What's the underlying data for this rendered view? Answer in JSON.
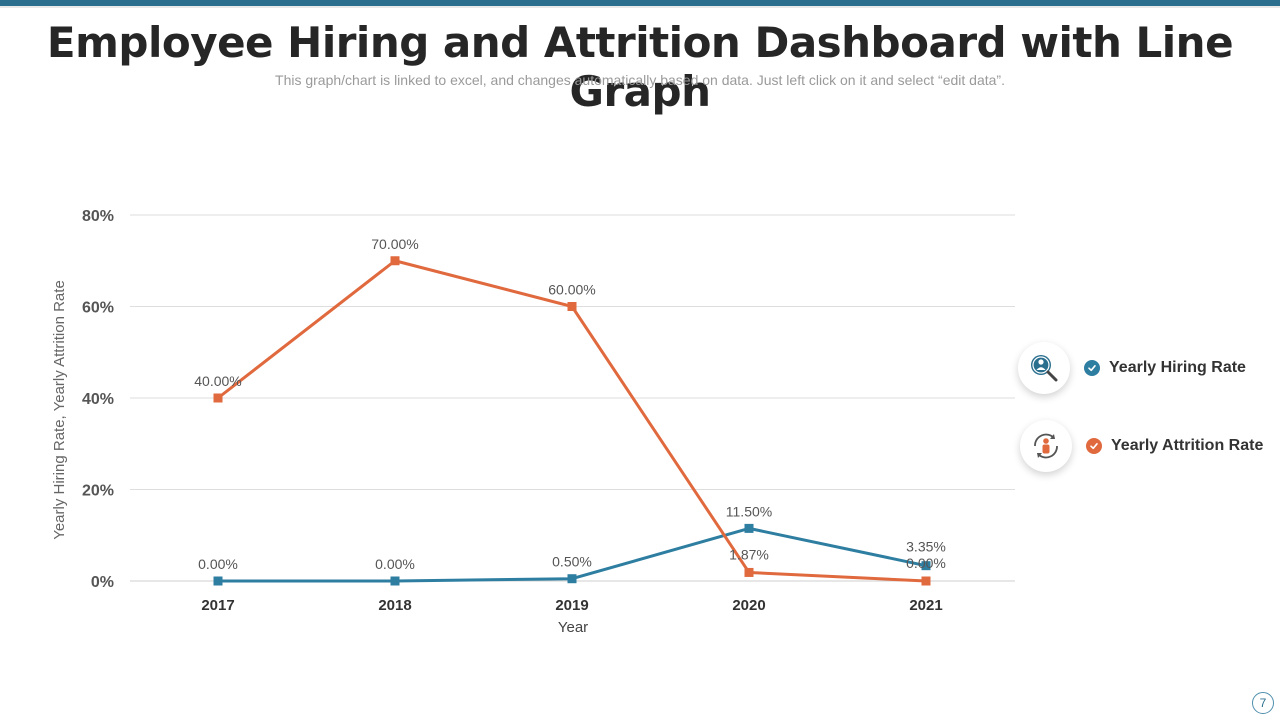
{
  "page": {
    "title": "Employee Hiring and Attrition Dashboard with Line Graph",
    "subtitle": "This graph/chart is linked to excel, and changes automatically based on data. Just left click on it and select “edit data”.",
    "page_number": "7"
  },
  "legend": [
    {
      "label": "Yearly Hiring Rate",
      "icon": "search-person-icon",
      "color": "#2e7ea1"
    },
    {
      "label": "Yearly Attrition Rate",
      "icon": "person-cycle-icon",
      "color": "#e0693e"
    }
  ],
  "chart_data": {
    "type": "line",
    "title": "",
    "xlabel": "Year",
    "ylabel": "Yearly Hiring Rate, Yearly Attrition Rate",
    "categories": [
      "2017",
      "2018",
      "2019",
      "2020",
      "2021"
    ],
    "ylim": [
      0,
      80
    ],
    "yticks": [
      0,
      20,
      40,
      60,
      80
    ],
    "ytick_labels": [
      "0%",
      "20%",
      "40%",
      "60%",
      "80%"
    ],
    "grid": true,
    "legend_position": "right",
    "series": [
      {
        "name": "Yearly Hiring Rate",
        "color": "#2e7ea1",
        "values": [
          0,
          0,
          0.5,
          11.5,
          3.35
        ],
        "labels": [
          "0.00%",
          "0.00%",
          "0.50%",
          "11.50%",
          "3.35%"
        ]
      },
      {
        "name": "Yearly Attrition Rate",
        "color": "#e0693e",
        "values": [
          40,
          70,
          60,
          1.87,
          0
        ],
        "labels": [
          "40.00%",
          "70.00%",
          "60.00%",
          "1.87%",
          "0.00%"
        ]
      }
    ]
  }
}
